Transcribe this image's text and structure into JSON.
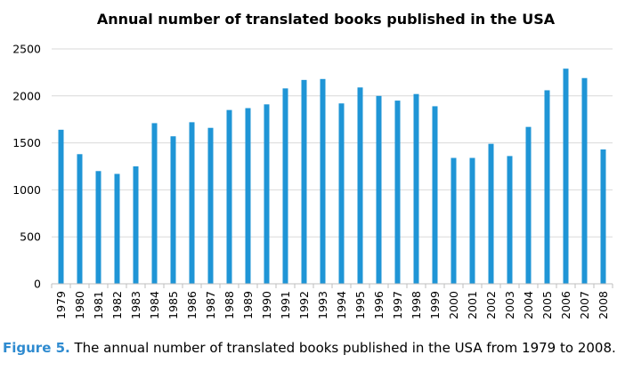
{
  "caption": {
    "label": "Figure 5.",
    "text": " The annual number of translated books published in the USA from 1979 to 2008."
  },
  "colors": {
    "bar": "#1f95d6",
    "caption_label": "#2f8bd0",
    "gridline": "#d9d9d9",
    "axis": "#bfbfbf"
  },
  "chart_data": {
    "type": "bar",
    "title": "Annual number of translated books published in the USA",
    "xlabel": "",
    "ylabel": "",
    "ylim": [
      0,
      2500
    ],
    "yticks": [
      0,
      500,
      1000,
      1500,
      2000,
      2500
    ],
    "grid": true,
    "legend": "none",
    "categories": [
      "1979",
      "1980",
      "1981",
      "1982",
      "1983",
      "1984",
      "1985",
      "1986",
      "1987",
      "1988",
      "1989",
      "1990",
      "1991",
      "1992",
      "1993",
      "1994",
      "1995",
      "1996",
      "1997",
      "1998",
      "1999",
      "2000",
      "2001",
      "2002",
      "2003",
      "2004",
      "2005",
      "2006",
      "2007",
      "2008"
    ],
    "values": [
      1640,
      1380,
      1200,
      1170,
      1250,
      1710,
      1570,
      1720,
      1660,
      1850,
      1870,
      1910,
      2080,
      2170,
      2180,
      1920,
      2090,
      2000,
      1950,
      2020,
      1890,
      1340,
      1340,
      1490,
      1360,
      1670,
      2060,
      2290,
      2190,
      1430
    ]
  }
}
